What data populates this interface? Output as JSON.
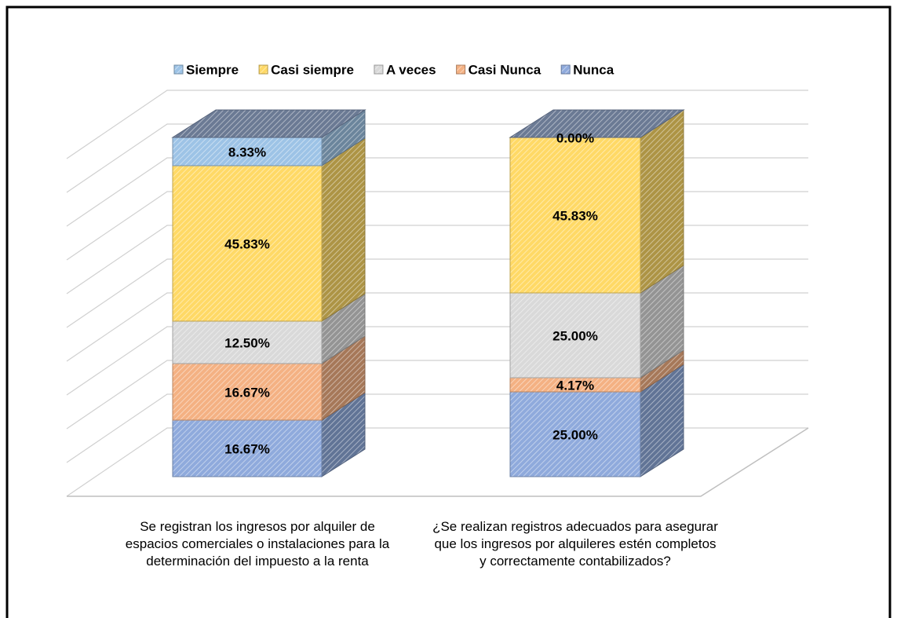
{
  "chart_data": {
    "type": "bar3d_stacked",
    "categories": [
      "Se registran los ingresos por alquiler de espacios comerciales o instalaciones para la determinación del impuesto a la renta",
      "¿Se realizan registros adecuados para asegurar que los ingresos por alquileres estén completos y correctamente contabilizados?"
    ],
    "series": [
      {
        "name": "Siempre",
        "color": "#9dc3e6",
        "values": [
          8.33,
          0.0
        ],
        "value_labels": [
          "8.33%",
          "0.00%"
        ]
      },
      {
        "name": "Casi siempre",
        "color": "#ffd966",
        "values": [
          45.83,
          45.83
        ],
        "value_labels": [
          "45.83%",
          "45.83%"
        ]
      },
      {
        "name": "A veces",
        "color": "#d9d9d9",
        "values": [
          12.5,
          25.0
        ],
        "value_labels": [
          "12.50%",
          "25.00%"
        ]
      },
      {
        "name": "Casi Nunca",
        "color": "#f4b183",
        "values": [
          16.67,
          4.17
        ],
        "value_labels": [
          "16.67%",
          "4.17%"
        ]
      },
      {
        "name": "Nunca",
        "color": "#8faadc",
        "values": [
          16.67,
          25.0
        ],
        "value_labels": [
          "16.67%",
          "25.00%"
        ]
      }
    ],
    "ylim": [
      0,
      100
    ],
    "yticks": [
      0,
      10,
      20,
      30,
      40,
      50,
      60,
      70,
      80,
      90,
      100
    ],
    "grid": true,
    "legend": "top"
  }
}
